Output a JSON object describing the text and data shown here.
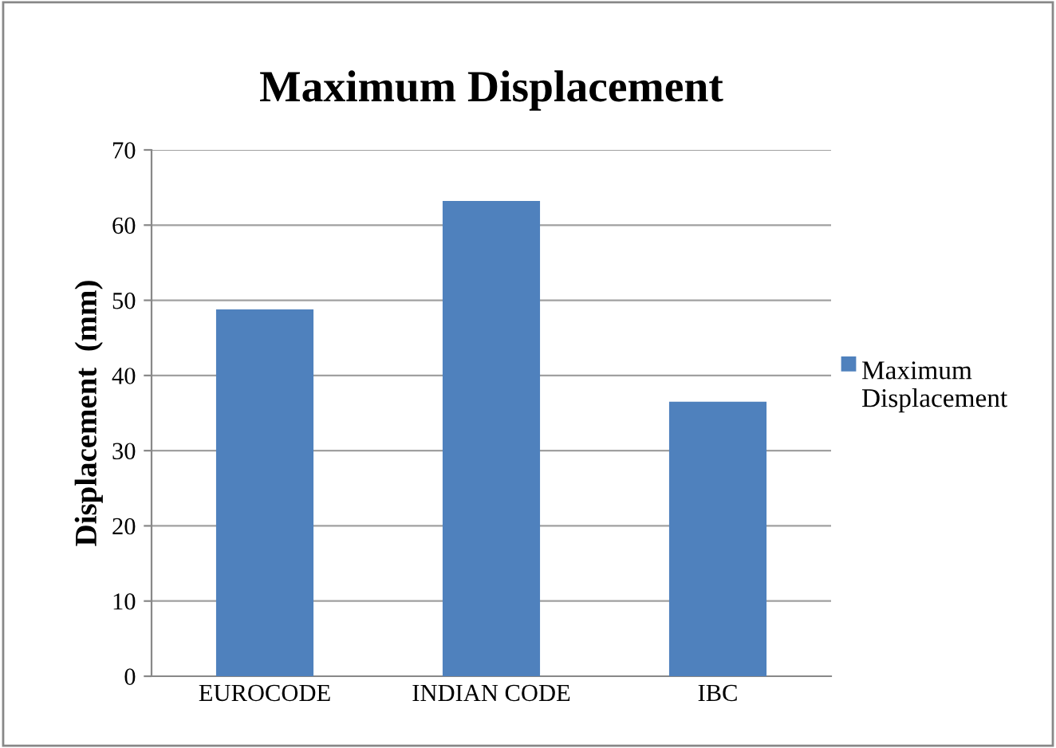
{
  "chart_data": {
    "type": "bar",
    "title": "Maximum Displacement",
    "ylabel": "Displacement  (mm)",
    "categories": [
      "EUROCODE",
      "INDIAN CODE",
      "IBC"
    ],
    "series": [
      {
        "name": "Maximum Displacement",
        "color": "#4f81bd",
        "values": [
          48.8,
          63.2,
          36.5
        ]
      }
    ],
    "ylim": [
      0,
      70
    ],
    "yticks": [
      0,
      10,
      20,
      30,
      40,
      50,
      60,
      70
    ],
    "grid": "y",
    "legend": "right"
  }
}
